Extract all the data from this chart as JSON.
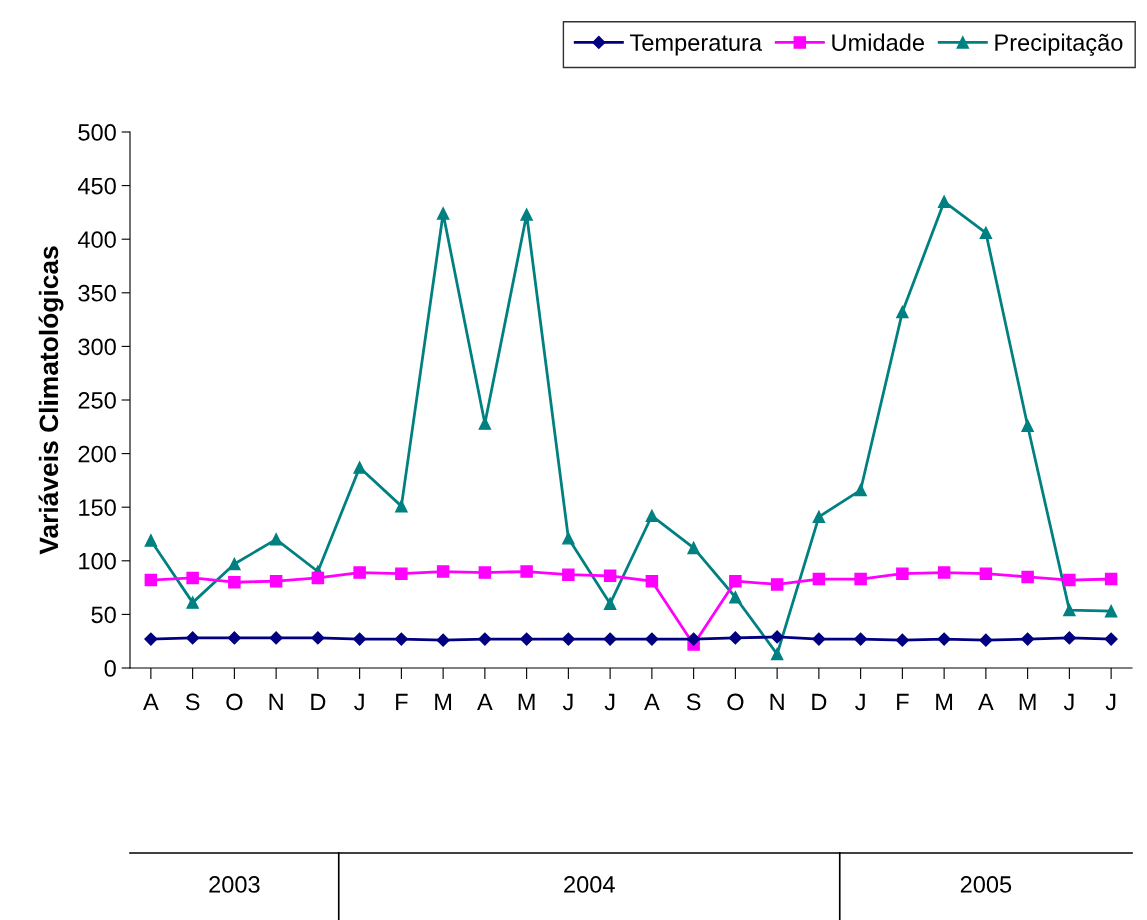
{
  "chart_data": {
    "type": "line",
    "ylabel": "Variáveis Climatológicas",
    "categories": [
      "A",
      "S",
      "O",
      "N",
      "D",
      "J",
      "F",
      "M",
      "A",
      "M",
      "J",
      "J",
      "A",
      "S",
      "O",
      "N",
      "D",
      "J",
      "F",
      "M",
      "A",
      "M",
      "J",
      "J"
    ],
    "series": [
      {
        "name": "Temperatura",
        "color": "#000080",
        "marker": "diamond",
        "values": [
          27,
          28,
          28,
          28,
          28,
          27,
          27,
          26,
          27,
          27,
          27,
          27,
          27,
          27,
          28,
          29,
          27,
          27,
          26,
          27,
          26,
          27,
          28,
          27
        ]
      },
      {
        "name": "Umidade",
        "color": "#ff00ff",
        "marker": "square",
        "values": [
          82,
          84,
          80,
          81,
          84,
          89,
          88,
          90,
          89,
          90,
          87,
          86,
          81,
          22,
          81,
          78,
          83,
          83,
          88,
          89,
          88,
          85,
          82,
          83
        ]
      },
      {
        "name": "Precipitação",
        "color": "#008080",
        "marker": "triangle",
        "values": [
          119,
          61,
          97,
          120,
          90,
          187,
          151,
          424,
          228,
          423,
          121,
          60,
          142,
          112,
          66,
          13,
          141,
          166,
          332,
          435,
          406,
          226,
          54,
          53
        ]
      }
    ],
    "ylim": [
      0,
      500
    ],
    "yticks": [
      0,
      50,
      100,
      150,
      200,
      250,
      300,
      350,
      400,
      450,
      500
    ],
    "grid": false,
    "legend": "top right",
    "annotations": [
      "2003",
      "2004",
      "2005"
    ]
  }
}
